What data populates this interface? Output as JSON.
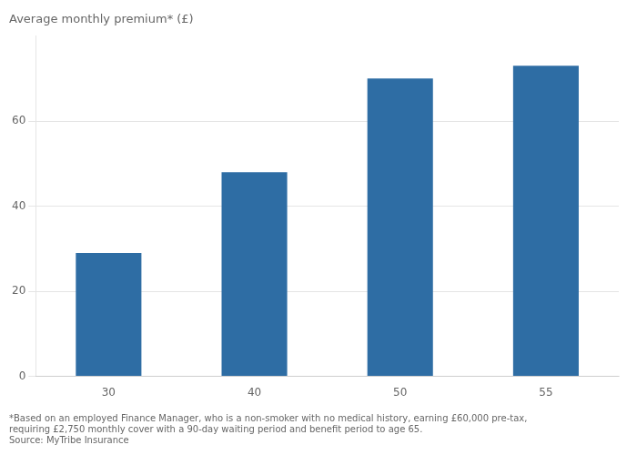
{
  "chart_data": {
    "type": "bar",
    "ylabel": "Average monthly premium* (£)",
    "categories": [
      "30",
      "40",
      "50",
      "55"
    ],
    "values": [
      29,
      48,
      70,
      73
    ],
    "color": "#2e6da4",
    "ylim": [
      0,
      80
    ],
    "yticks": [
      0,
      20,
      40,
      60
    ],
    "grid": true,
    "annotations": [
      "*Based on an employed Finance Manager, who is a non-smoker with no medical history, earning £60,000 pre-tax,",
      "requiring £2,750 monthly cover with a 90-day waiting period and benefit period to age 65.",
      "Source: MyTribe Insurance"
    ]
  }
}
